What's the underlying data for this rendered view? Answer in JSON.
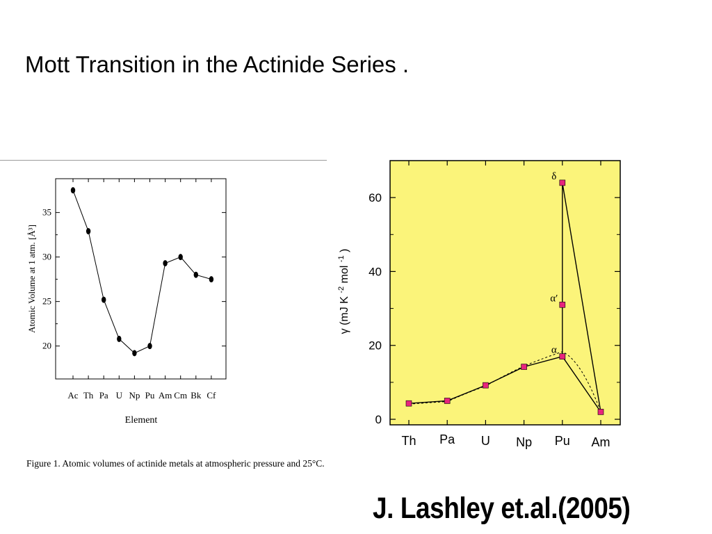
{
  "slide": {
    "title": "Mott Transition in the Actinide Series .",
    "citation": "J. Lashley et.al.(2005)"
  },
  "colors": {
    "left_plot_background": "#ffffff",
    "right_plot_background": "#fbf47a",
    "right_marker": "#e8247c",
    "line": "#000000"
  },
  "chart_data": [
    {
      "type": "line",
      "xlabel": "Element",
      "ylabel": "Atomic Volume at 1 atm. [Å³]",
      "categories": [
        "Ac",
        "Th",
        "Pa",
        "U",
        "Np",
        "Pu",
        "Am",
        "Cm",
        "Bk",
        "Cf"
      ],
      "series": [
        {
          "values": [
            37.5,
            32.9,
            25.2,
            20.8,
            19.2,
            20.0,
            29.3,
            30.0,
            28.0,
            27.5
          ]
        }
      ],
      "ylim": [
        16.3,
        38.8
      ],
      "yticks": [
        20,
        25,
        30,
        35
      ],
      "ytick_labels": [
        "20",
        "25",
        "30",
        "35"
      ],
      "caption": "Figure 1. Atomic volumes of actinide metals at atmospheric pressure and 25°C.",
      "grid": false,
      "legend": "none"
    },
    {
      "type": "line",
      "xlabel": "",
      "ylabel": "γ (mJ K⁻² mol⁻¹)",
      "categories": [
        "Th",
        "Pa",
        "U",
        "Np",
        "Pu",
        "Am"
      ],
      "series": [
        {
          "values": [
            4.3,
            5.0,
            9.2,
            14.2,
            17.0,
            2.0
          ]
        },
        {
          "values": [
            null,
            null,
            null,
            null,
            64.0,
            2.0
          ]
        }
      ],
      "dotted_curve": {
        "x": [
          "Th",
          "Pa",
          "U",
          "Np",
          "Pu",
          "Am"
        ],
        "values": [
          4.1,
          4.8,
          9.0,
          14.4,
          18.3,
          2.0
        ]
      },
      "vertical_segment": {
        "x": "Pu",
        "from": 17.0,
        "to": 64.0
      },
      "extra_points": [
        {
          "x": "Pu",
          "y": 64.0,
          "label": "δ"
        },
        {
          "x": "Pu",
          "y": 31.0,
          "label": "α′"
        },
        {
          "x": "Pu",
          "y": 17.0,
          "label": "α"
        }
      ],
      "ylim": [
        -1.5,
        70.0
      ],
      "yticks": [
        0,
        20,
        40,
        60
      ],
      "ytick_labels": [
        "0",
        "20",
        "40",
        "60"
      ],
      "grid": false,
      "legend": "none"
    }
  ]
}
